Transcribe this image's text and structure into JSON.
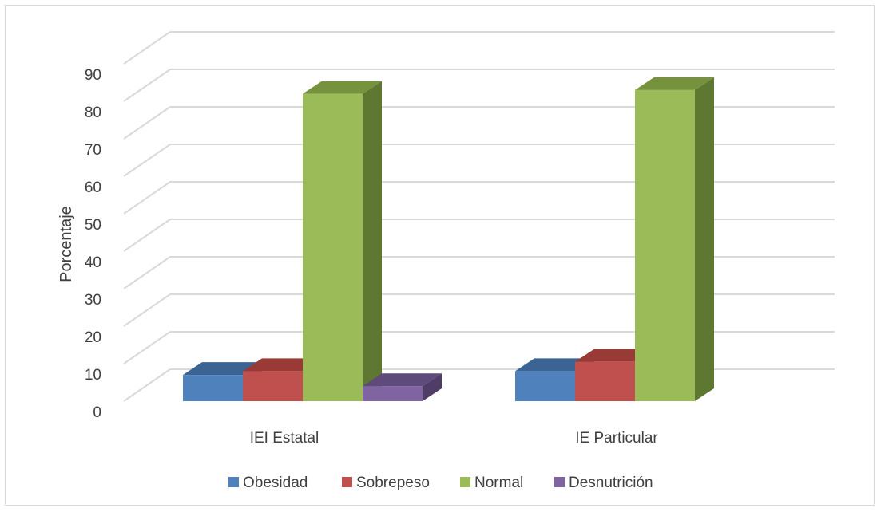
{
  "chart_data": {
    "type": "bar",
    "variant": "3d-clustered-column",
    "categories": [
      "IEI Estatal",
      "IE Particular"
    ],
    "series": [
      {
        "name": "Obesidad",
        "values": [
          7,
          8
        ],
        "color": "#4f81bd",
        "top_color": "#3b6494",
        "side_color": "#2f5582"
      },
      {
        "name": "Sobrepeso",
        "values": [
          8,
          10.5
        ],
        "color": "#c0504d",
        "top_color": "#9a3a37",
        "side_color": "#8c3330"
      },
      {
        "name": "Normal",
        "values": [
          82,
          83
        ],
        "color": "#9bbb59",
        "top_color": "#76923c",
        "side_color": "#5f7831"
      },
      {
        "name": "Desnutrición",
        "values": [
          4,
          null
        ],
        "color": "#8064a2",
        "top_color": "#5f4a7c",
        "side_color": "#4f3d68"
      }
    ],
    "ylabel": "Porcentaje",
    "xlabel": "",
    "title": "",
    "ylim": [
      0,
      90
    ],
    "yticks": [
      0,
      10,
      20,
      30,
      40,
      50,
      60,
      70,
      80,
      90
    ],
    "grid": true,
    "legend": "bottom",
    "gridline_color": "#d9d9d9"
  }
}
